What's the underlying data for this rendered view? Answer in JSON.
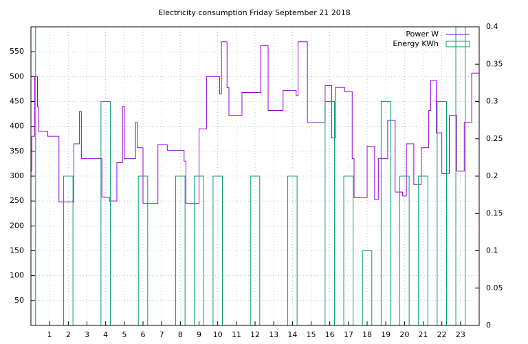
{
  "chart_data": {
    "type": "step-and-boxes",
    "title": "Electricity consumption Friday September 21 2018",
    "xlim": [
      0,
      24
    ],
    "xticks": [
      1,
      2,
      3,
      4,
      5,
      6,
      7,
      8,
      9,
      10,
      11,
      12,
      13,
      14,
      15,
      16,
      17,
      18,
      19,
      20,
      21,
      22,
      23
    ],
    "ylim": [
      0,
      600
    ],
    "yticks": [
      50,
      100,
      150,
      200,
      250,
      300,
      350,
      400,
      450,
      500,
      550
    ],
    "y2lim": [
      0,
      0.4
    ],
    "y2ticks": [
      0,
      0.05,
      0.1,
      0.15,
      0.2,
      0.25,
      0.3,
      0.35,
      0.4
    ],
    "grid": true,
    "legend": "top-right",
    "series": [
      {
        "name": "Power W",
        "color": "#9400d3",
        "type": "step",
        "x": [
          0,
          0.05,
          0.2,
          0.35,
          0.4,
          0.9,
          1.5,
          2.3,
          2.6,
          2.7,
          3.8,
          4.2,
          4.6,
          4.9,
          5.0,
          5.6,
          5.7,
          6.0,
          6.8,
          7.3,
          8.2,
          8.3,
          9.0,
          9.4,
          10.1,
          10.2,
          10.5,
          10.6,
          11.3,
          12.3,
          12.7,
          13.5,
          14.2,
          14.3,
          14.8,
          15.75,
          16.1,
          16.3,
          16.8,
          17.2,
          17.3,
          18.0,
          18.4,
          18.6,
          19.1,
          19.5,
          19.9,
          20.1,
          20.5,
          20.9,
          21.3,
          21.4,
          21.7,
          22.0,
          22.4,
          22.8,
          23.2,
          23.6
        ],
        "values": [
          310,
          380,
          500,
          440,
          390,
          380,
          248,
          365,
          430,
          335,
          258,
          250,
          327,
          440,
          335,
          408,
          357,
          245,
          363,
          352,
          330,
          245,
          395,
          500,
          465,
          570,
          478,
          422,
          468,
          562,
          432,
          472,
          462,
          570,
          408,
          482,
          377,
          478,
          470,
          335,
          257,
          360,
          253,
          335,
          412,
          268,
          260,
          365,
          283,
          357,
          432,
          492,
          387,
          305,
          422,
          310,
          408,
          507
        ]
      },
      {
        "name": "Energy KWh",
        "color": "#009e73",
        "type": "boxes",
        "axis": "y2",
        "x": [
          0,
          2,
          4,
          6,
          8,
          9,
          10,
          12,
          14,
          16,
          17,
          18,
          19,
          20,
          21,
          22,
          23
        ],
        "values": [
          0.4,
          0.2,
          0.3,
          0.2,
          0.2,
          0.2,
          0.2,
          0.2,
          0.2,
          0.3,
          0.2,
          0.1,
          0.3,
          0.2,
          0.2,
          0.3,
          0.4
        ]
      }
    ]
  }
}
